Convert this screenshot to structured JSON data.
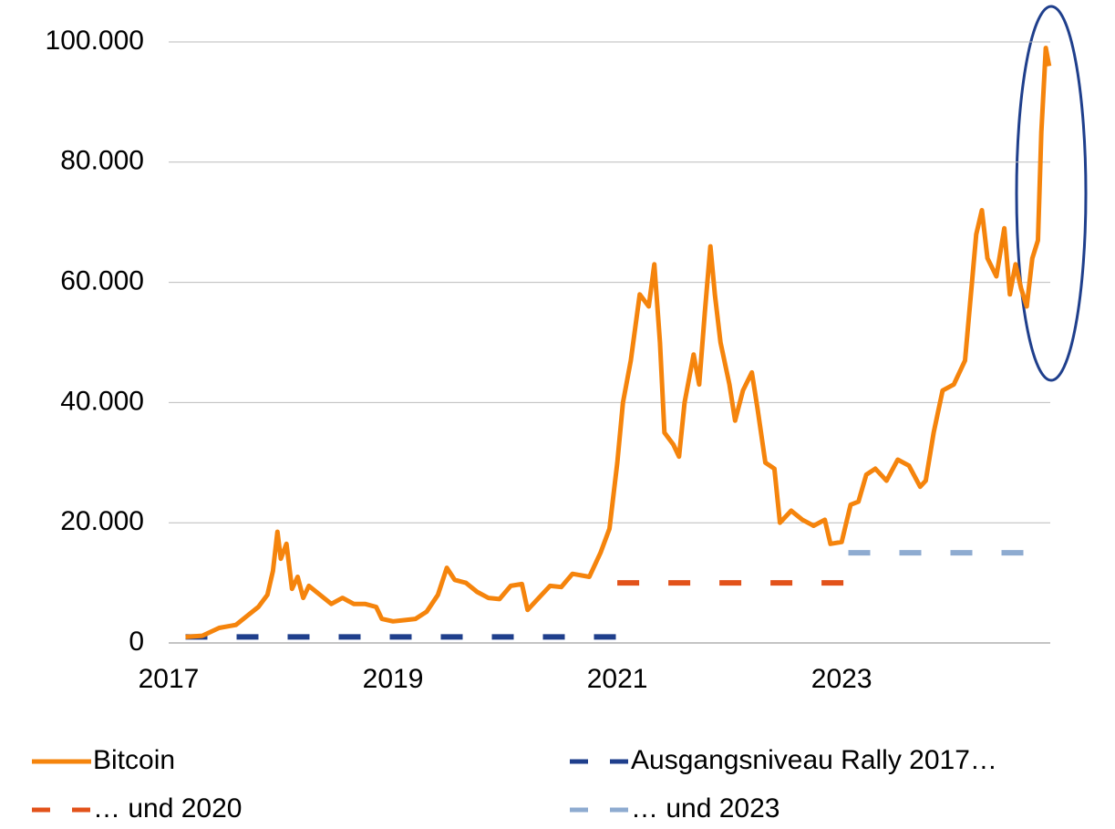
{
  "chart_data": {
    "type": "line",
    "xlim": [
      2017,
      2024.86
    ],
    "xticks": [
      2017,
      2019,
      2021,
      2023
    ],
    "ylim": [
      0,
      100000
    ],
    "yticks": [
      0,
      {
        "value": 20000,
        "label": "20.000"
      },
      {
        "value": 40000,
        "label": "40.000"
      },
      {
        "value": 60000,
        "label": "60.000"
      },
      {
        "value": 80000,
        "label": "80.000"
      },
      {
        "value": 100000,
        "label": "100.000"
      }
    ],
    "grid": true,
    "legend": "bottom",
    "series": [
      {
        "name": "Bitcoin",
        "color": "#f5840c",
        "style": "solid",
        "x": [
          2017.15,
          2017.3,
          2017.45,
          2017.6,
          2017.7,
          2017.8,
          2017.88,
          2017.93,
          2017.97,
          2018.0,
          2018.05,
          2018.1,
          2018.15,
          2018.2,
          2018.25,
          2018.35,
          2018.45,
          2018.55,
          2018.65,
          2018.75,
          2018.85,
          2018.9,
          2019.0,
          2019.1,
          2019.2,
          2019.3,
          2019.4,
          2019.48,
          2019.55,
          2019.65,
          2019.75,
          2019.85,
          2019.95,
          2020.05,
          2020.15,
          2020.2,
          2020.3,
          2020.4,
          2020.5,
          2020.6,
          2020.75,
          2020.85,
          2020.93,
          2021.0,
          2021.05,
          2021.12,
          2021.2,
          2021.28,
          2021.33,
          2021.38,
          2021.42,
          2021.5,
          2021.55,
          2021.6,
          2021.68,
          2021.73,
          2021.78,
          2021.83,
          2021.87,
          2021.92,
          2022.0,
          2022.05,
          2022.12,
          2022.2,
          2022.25,
          2022.32,
          2022.4,
          2022.45,
          2022.55,
          2022.65,
          2022.75,
          2022.85,
          2022.9,
          2023.0,
          2023.08,
          2023.15,
          2023.22,
          2023.3,
          2023.4,
          2023.5,
          2023.6,
          2023.7,
          2023.75,
          2023.82,
          2023.9,
          2024.0,
          2024.1,
          2024.2,
          2024.25,
          2024.3,
          2024.38,
          2024.45,
          2024.5,
          2024.55,
          2024.6,
          2024.65,
          2024.7,
          2024.75,
          2024.78,
          2024.82,
          2024.85
        ],
        "values": [
          1000,
          1200,
          2500,
          3000,
          4500,
          6000,
          8000,
          12000,
          18500,
          14000,
          16500,
          9000,
          11000,
          7500,
          9500,
          8000,
          6500,
          7500,
          6500,
          6500,
          6000,
          4000,
          3600,
          3800,
          4000,
          5200,
          8000,
          12500,
          10500,
          10000,
          8500,
          7500,
          7300,
          9500,
          9800,
          5500,
          7500,
          9500,
          9300,
          11500,
          11000,
          15000,
          19000,
          30000,
          40000,
          47000,
          58000,
          56000,
          63000,
          50000,
          35000,
          33000,
          31000,
          40000,
          48000,
          43000,
          55000,
          66000,
          58000,
          50000,
          43000,
          37000,
          42000,
          45000,
          39000,
          30000,
          29000,
          20000,
          22000,
          20500,
          19500,
          20500,
          16500,
          16800,
          23000,
          23500,
          28000,
          29000,
          27000,
          30500,
          29500,
          26000,
          27000,
          35000,
          42000,
          43000,
          47000,
          68000,
          72000,
          64000,
          61000,
          69000,
          58000,
          63000,
          59000,
          56000,
          64000,
          67000,
          85000,
          99000,
          96000
        ]
      },
      {
        "name": "Ausgangsniveau Rally 2017…",
        "color": "#1f3f8c",
        "style": "dashed",
        "x": [
          2017.15,
          2021.0
        ],
        "values": [
          1000,
          1000
        ]
      },
      {
        "name": "… und 2020",
        "color": "#e2521a",
        "style": "dashed",
        "x": [
          2021.0,
          2023.06
        ],
        "values": [
          10000,
          10000
        ]
      },
      {
        "name": "… und 2023",
        "color": "#8eabd0",
        "style": "dashed",
        "x": [
          2023.06,
          2024.67
        ],
        "values": [
          15000,
          15000
        ]
      }
    ]
  }
}
